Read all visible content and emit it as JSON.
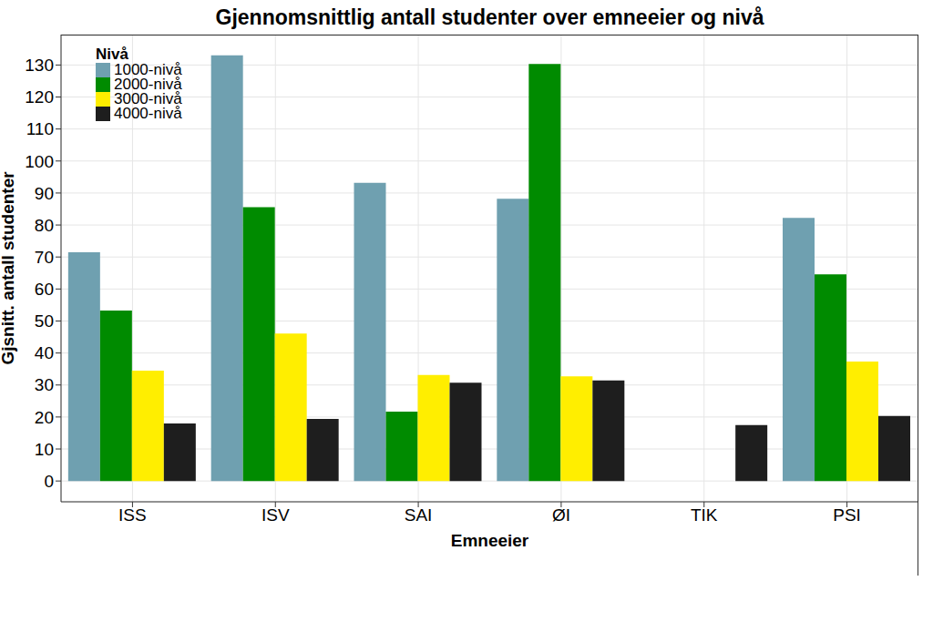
{
  "chart_data": {
    "type": "bar",
    "title": "Gjennomsnittlig antall studenter over emneeier og nivå",
    "x_label": "Emneeier",
    "y_label": "Gjsnitt. antall studenter",
    "legend_title": "Nivå",
    "categories": [
      "ISS",
      "ISV",
      "SAI",
      "ØI",
      "TIK",
      "PSI"
    ],
    "series": [
      {
        "name": "1000-nivå",
        "color": "#6fa0b0",
        "values": [
          71.5,
          133,
          93.2,
          88.2,
          null,
          82.2
        ]
      },
      {
        "name": "2000-nivå",
        "color": "#008b00",
        "values": [
          53.3,
          85.6,
          21.7,
          130.3,
          null,
          64.6
        ]
      },
      {
        "name": "3000-nivå",
        "color": "#ffee00",
        "values": [
          34.5,
          46.1,
          33.1,
          32.7,
          null,
          37.3
        ]
      },
      {
        "name": "4000-nivå",
        "color": "#1e1e1e",
        "values": [
          18,
          19.4,
          30.7,
          31.4,
          17.5,
          20.3
        ]
      }
    ],
    "ylim": [
      -6.5,
      139.5
    ],
    "yticks": [
      0,
      10,
      20,
      30,
      40,
      50,
      60,
      70,
      80,
      90,
      100,
      110,
      120,
      130
    ],
    "grid": true,
    "legend": "top-left"
  }
}
